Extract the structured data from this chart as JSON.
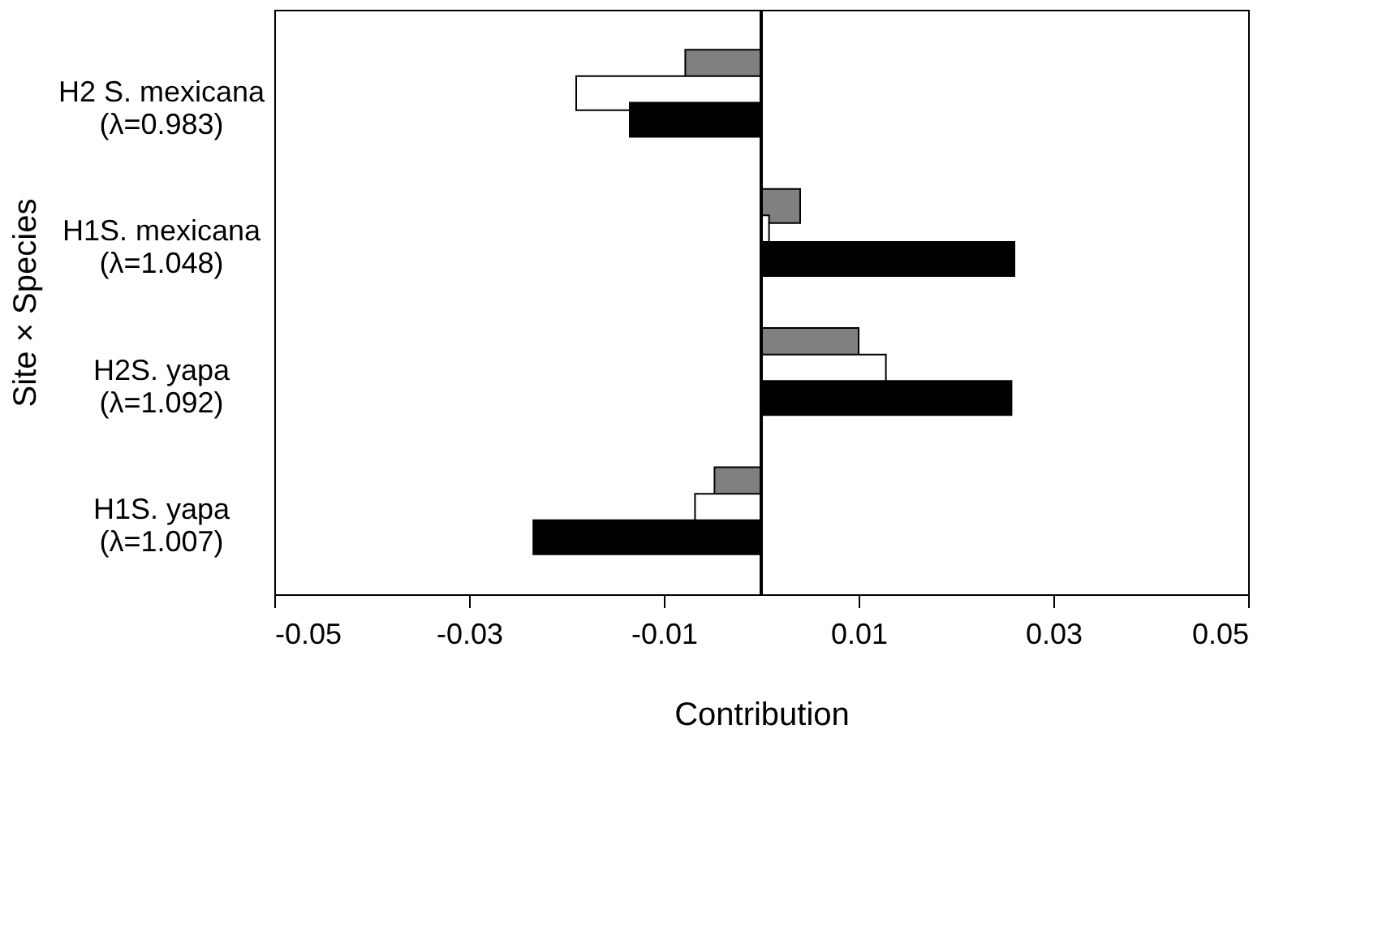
{
  "chart_data": {
    "type": "bar",
    "orientation": "horizontal",
    "xlabel": "Contribution",
    "ylabel": "Site × Species",
    "categories": [
      "H2 S. mexicana\n(λ=0.983)",
      "H1S. mexicana\n(λ=1.048)",
      "H2S. yapa\n(λ=1.092)",
      "H1S. yapa\n(λ=1.007)"
    ],
    "series": [
      {
        "color": "#808080",
        "values": [
          -0.0078,
          0.004,
          0.01,
          -0.0048
        ]
      },
      {
        "color": "#ffffff",
        "values": [
          -0.019,
          0.0008,
          0.0128,
          -0.0068
        ]
      },
      {
        "color": "#000000",
        "values": [
          -0.0135,
          0.026,
          0.0257,
          -0.0234
        ]
      }
    ],
    "xlim": [
      -0.05,
      0.05
    ],
    "xticks": [
      -0.05,
      -0.03,
      -0.01,
      0.01,
      0.03,
      0.05
    ],
    "ref_lines": [
      {
        "axis": "x",
        "value": 0,
        "color": "#000000"
      }
    ],
    "grid": false
  }
}
